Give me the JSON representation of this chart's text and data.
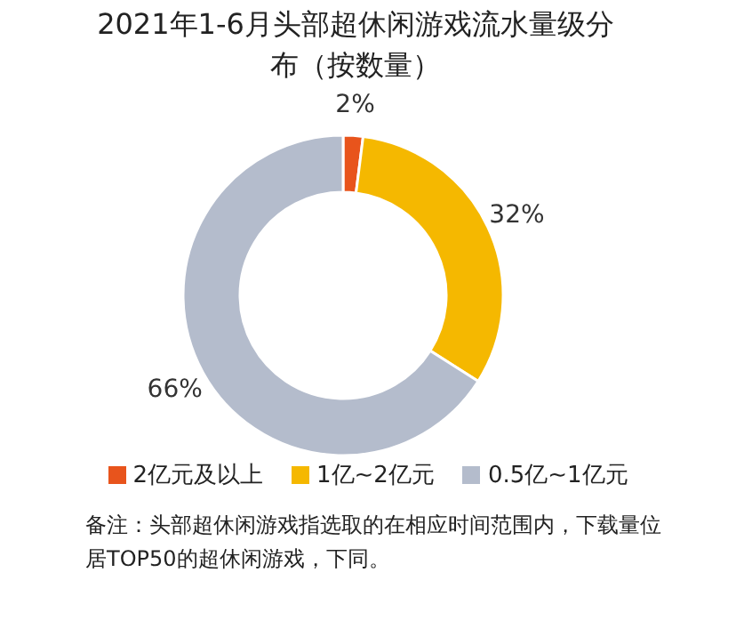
{
  "chart_data": {
    "type": "donut",
    "title": "2021年1-6月头部超休闲游戏流水量级分布（按数量）",
    "categories": [
      "2亿元及以上",
      "1亿~2亿元",
      "0.5亿~1亿元"
    ],
    "values": [
      2,
      32,
      66
    ],
    "colors": [
      "#e8541c",
      "#f5b800",
      "#b4bccc"
    ],
    "value_labels": [
      "2%",
      "32%",
      "66%"
    ],
    "legend": "bottom",
    "annotations": [
      "备注：头部超休闲游戏指选取的在相应时间范围内，下载量位居TOP50的超休闲游戏，下同。"
    ]
  }
}
